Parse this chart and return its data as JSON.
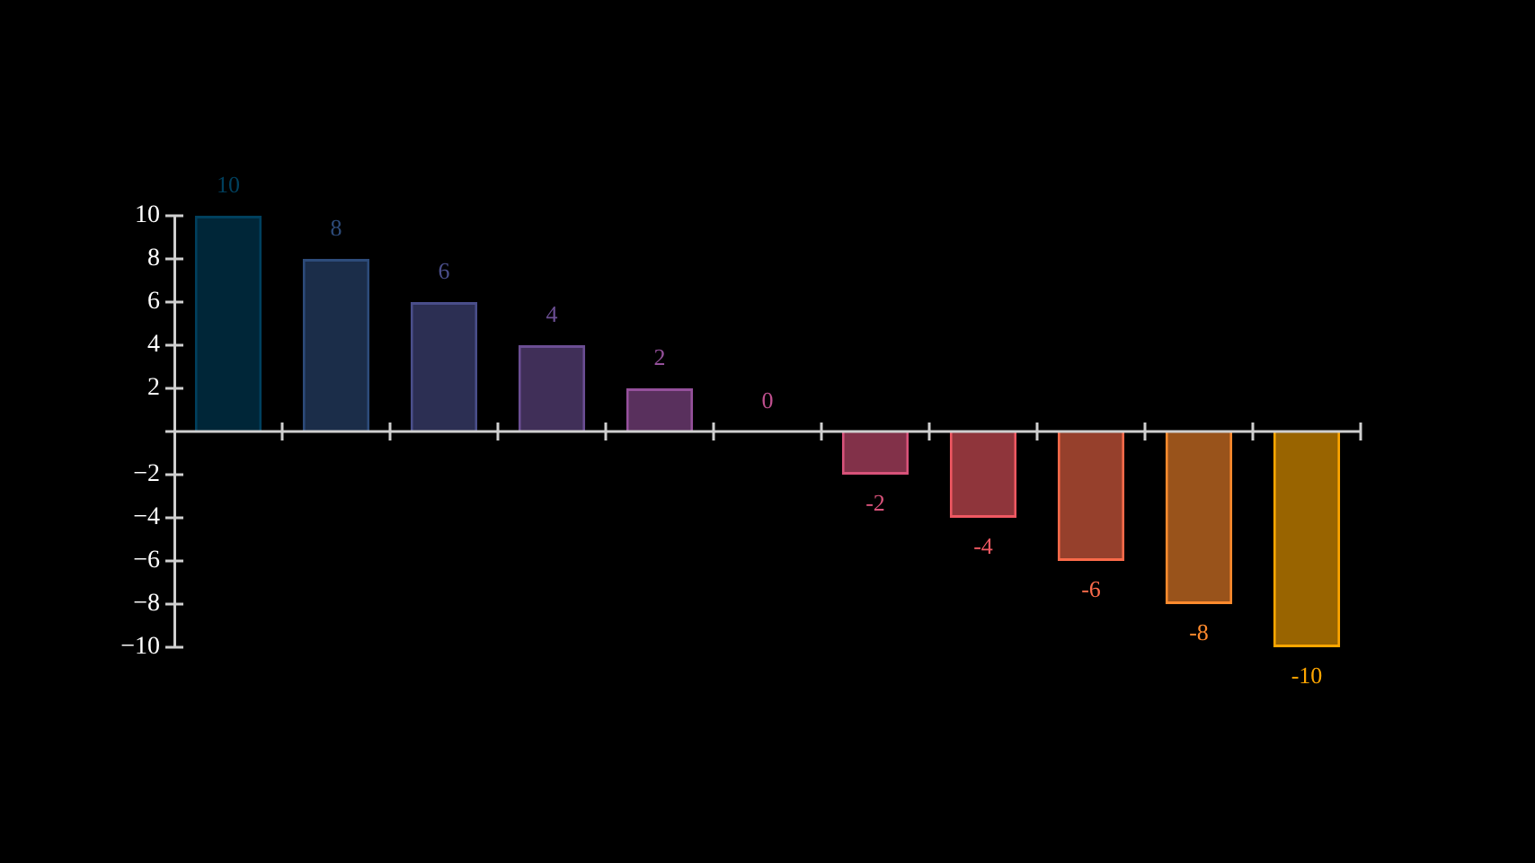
{
  "chart_data": {
    "type": "bar",
    "categories": [
      null,
      null,
      null,
      null,
      null,
      null,
      null,
      null,
      null,
      null,
      null
    ],
    "values": [
      10,
      8,
      6,
      4,
      2,
      0,
      -2,
      -4,
      -6,
      -8,
      -10
    ],
    "colors": [
      "#00405e",
      "#2d4b7a",
      "#4a4e8a",
      "#6b4e93",
      "#95509b",
      "#c0508f",
      "#d8527a",
      "#ef5862",
      "#fa6a4a",
      "#ff8a2d",
      "#ffa600"
    ],
    "ylim": [
      -10,
      10
    ],
    "yticks": [
      {
        "value": -10,
        "label": "−10"
      },
      {
        "value": -8,
        "label": "−8"
      },
      {
        "value": -6,
        "label": "−6"
      },
      {
        "value": -4,
        "label": "−4"
      },
      {
        "value": -2,
        "label": "−2"
      },
      {
        "value": 0,
        "label": null
      },
      2,
      4,
      6,
      8,
      10
    ],
    "legend": false,
    "data_labels": true
  }
}
